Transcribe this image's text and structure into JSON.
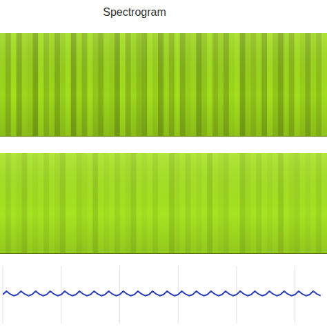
{
  "chart_data": [
    {
      "type": "heatmap",
      "title": "Spectrogram",
      "color": "#a8e51e",
      "tick_labels": false,
      "values": [
        0.2,
        0.6,
        0.1,
        0.7,
        0.2,
        0.3,
        0.8,
        0.1,
        0.5,
        0.2,
        0.7,
        0.3,
        0.1,
        0.8,
        0.2,
        0.6,
        0.1,
        0.4,
        0.7,
        0.2,
        0.3,
        0.8,
        0.1,
        0.6,
        0.2,
        0.5,
        0.7,
        0.1,
        0.3,
        0.8,
        0.2,
        0.6,
        0.1,
        0.7,
        0.3,
        0.2,
        0.8,
        0.4,
        0.1,
        0.6,
        0.3,
        0.7,
        0.2,
        0.1,
        0.8,
        0.3,
        0.5,
        0.2,
        0.7,
        0.1,
        0.4,
        0.8,
        0.2,
        0.6,
        0.1,
        0.3,
        0.7,
        0.2,
        0.5,
        0.1
      ]
    },
    {
      "type": "heatmap",
      "color": "#acea22",
      "tick_labels": false,
      "values": [
        0.1,
        0.3,
        0.1,
        0.2,
        0.4,
        0.1,
        0.2,
        0.1,
        0.3,
        0.1,
        0.2,
        0.4,
        0.1,
        0.1,
        0.3,
        0.2,
        0.1,
        0.4,
        0.1,
        0.2,
        0.1,
        0.3,
        0.1,
        0.2,
        0.4,
        0.1,
        0.2,
        0.1,
        0.3,
        0.1,
        0.1,
        0.4,
        0.2,
        0.1,
        0.3,
        0.1,
        0.2,
        0.1,
        0.4,
        0.1,
        0.2,
        0.3,
        0.1,
        0.1,
        0.4,
        0.2,
        0.1,
        0.3,
        0.1,
        0.2,
        0.1,
        0.4,
        0.1,
        0.2,
        0.3,
        0.1,
        0.2,
        0.1,
        0.3,
        0.1
      ]
    },
    {
      "type": "line",
      "color": "#2a3db5",
      "grid": true,
      "tick_labels": false,
      "xlim": [
        0,
        88
      ],
      "xticks": [
        0,
        16,
        32,
        48,
        64,
        80
      ],
      "ylim": [
        -1,
        1
      ],
      "values": [
        0,
        0.12,
        0.02,
        -0.04,
        0,
        0.12,
        0.02,
        -0.04,
        0,
        0.12,
        0.02,
        -0.04,
        0,
        0.12,
        0.02,
        -0.04,
        0,
        0.12,
        0.02,
        -0.04,
        0,
        0.12,
        0.02,
        -0.04,
        0,
        0.12,
        0.02,
        -0.04,
        0,
        0.12,
        0.02,
        -0.04,
        0,
        0.12,
        0.02,
        -0.04,
        0,
        0.12,
        0.02,
        -0.04,
        0,
        0.12,
        0.02,
        -0.04,
        0,
        0.12,
        0.02,
        -0.04,
        0,
        0.12,
        0.02,
        -0.04,
        0,
        0.12,
        0.02,
        -0.04,
        0,
        0.12,
        0.02,
        -0.04,
        0,
        0.12,
        0.02,
        -0.04,
        0,
        0.12,
        0.02,
        -0.04,
        0,
        0.12,
        0.02,
        -0.04,
        0,
        0.12,
        0.02,
        -0.04,
        0,
        0.12,
        0.02,
        -0.04,
        0,
        0.12,
        0.02,
        -0.04,
        0,
        0.12,
        0.02,
        -0.04
      ]
    }
  ]
}
